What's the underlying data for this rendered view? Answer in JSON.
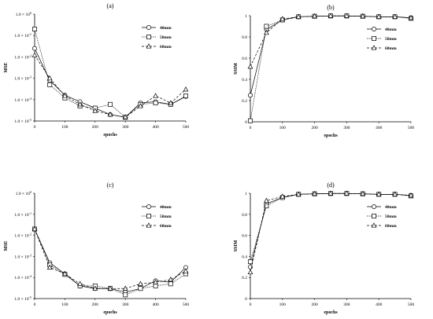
{
  "chart_data": [
    {
      "panel": "(a)",
      "type": "line",
      "xlabel": "epochs",
      "ylabel": "MSE",
      "yscale": "log",
      "xlim": [
        0,
        500
      ],
      "ylim": [
        1e-05,
        1
      ],
      "x_ticks": [
        "0",
        "100",
        "200",
        "300",
        "400",
        "500"
      ],
      "y_ticks": [
        "1.0 × 10^-5",
        "1.0 × 10^-4",
        "1.0 × 10^-3",
        "1.0 × 10^-2",
        "1.0 × 10^-1",
        "1.0 × 10^0"
      ],
      "legend_position": "top-right",
      "x": [
        0,
        50,
        100,
        150,
        200,
        250,
        300,
        350,
        400,
        450,
        500
      ],
      "series": [
        {
          "name": "40mm",
          "marker": "circle",
          "dash": "solid",
          "values": [
            0.025,
            0.0008,
            0.00016,
            8e-05,
            4e-05,
            2e-05,
            1.5e-05,
            7e-05,
            8e-05,
            6e-05,
            0.00014
          ]
        },
        {
          "name": "50mm",
          "marker": "square",
          "dash": "dotted",
          "values": [
            0.2,
            0.0005,
            0.00012,
            5e-05,
            4e-05,
            6e-05,
            1.5e-05,
            6e-05,
            7e-05,
            6e-05,
            0.00015
          ]
        },
        {
          "name": "60mm",
          "marker": "triangle",
          "dash": "dashed",
          "values": [
            0.012,
            0.001,
            0.00015,
            6e-05,
            3e-05,
            2e-05,
            1.5e-05,
            5e-05,
            0.00015,
            7e-05,
            0.0003
          ]
        }
      ]
    },
    {
      "panel": "(b)",
      "type": "line",
      "xlabel": "epochs",
      "ylabel": "SSIM",
      "xlim": [
        0,
        500
      ],
      "ylim": [
        0,
        1
      ],
      "x_ticks": [
        "0",
        "100",
        "200",
        "300",
        "400",
        "500"
      ],
      "y_ticks": [
        "0",
        "0.2",
        "0.4",
        "0.6",
        "0.8",
        "1"
      ],
      "legend_position": "top-right",
      "x": [
        0,
        50,
        100,
        150,
        200,
        250,
        300,
        350,
        400,
        450,
        500
      ],
      "series": [
        {
          "name": "40mm",
          "marker": "circle",
          "dash": "solid",
          "values": [
            0.25,
            0.87,
            0.96,
            0.99,
            0.995,
            0.998,
            0.998,
            0.995,
            0.99,
            0.99,
            0.98
          ]
        },
        {
          "name": "50mm",
          "marker": "square",
          "dash": "dotted",
          "values": [
            0.01,
            0.9,
            0.96,
            0.99,
            0.995,
            0.998,
            0.998,
            0.995,
            0.99,
            0.99,
            0.975
          ]
        },
        {
          "name": "60mm",
          "marker": "triangle",
          "dash": "dashed",
          "values": [
            0.52,
            0.84,
            0.97,
            0.99,
            0.995,
            0.998,
            0.998,
            0.995,
            0.99,
            0.99,
            0.98
          ]
        }
      ]
    },
    {
      "panel": "(c)",
      "type": "line",
      "xlabel": "epochs",
      "ylabel": "MSE",
      "yscale": "log",
      "xlim": [
        0,
        500
      ],
      "ylim": [
        1e-05,
        1
      ],
      "x_ticks": [
        "0",
        "100",
        "200",
        "300",
        "400",
        "500"
      ],
      "y_ticks": [
        "1.0 × 10^-5",
        "1.0 × 10^-4",
        "1.0 × 10^-3",
        "1.0 × 10^-2",
        "1.0 × 10^-1",
        "1.0 × 10^0"
      ],
      "legend_position": "top-right",
      "x": [
        0,
        50,
        100,
        150,
        200,
        250,
        300,
        350,
        400,
        450,
        500
      ],
      "series": [
        {
          "name": "40mm",
          "marker": "circle",
          "dash": "solid",
          "values": [
            0.02,
            0.0005,
            0.00015,
            4e-05,
            3e-05,
            3e-05,
            2e-05,
            3e-05,
            7e-05,
            6e-05,
            0.0003
          ]
        },
        {
          "name": "50mm",
          "marker": "square",
          "dash": "dotted",
          "values": [
            0.02,
            0.0004,
            0.00014,
            4e-05,
            4e-05,
            3e-05,
            1.5e-05,
            3e-05,
            4e-05,
            5e-05,
            0.00015
          ]
        },
        {
          "name": "60mm",
          "marker": "triangle",
          "dash": "dashed",
          "values": [
            0.02,
            0.0003,
            0.00015,
            5e-05,
            3e-05,
            3e-05,
            3e-05,
            5e-05,
            6e-05,
            8e-05,
            0.0002
          ]
        }
      ]
    },
    {
      "panel": "(d)",
      "type": "line",
      "xlabel": "epochs",
      "ylabel": "SSIM",
      "xlim": [
        0,
        500
      ],
      "ylim": [
        0,
        1
      ],
      "x_ticks": [
        "0",
        "100",
        "200",
        "300",
        "400",
        "500"
      ],
      "y_ticks": [
        "0",
        "0.2",
        "0.4",
        "0.6",
        "0.8",
        "1"
      ],
      "legend_position": "top-right",
      "x": [
        0,
        50,
        100,
        150,
        200,
        250,
        300,
        350,
        400,
        450,
        500
      ],
      "series": [
        {
          "name": "40mm",
          "marker": "circle",
          "dash": "solid",
          "values": [
            0.3,
            0.9,
            0.96,
            0.99,
            0.995,
            0.998,
            0.998,
            0.995,
            0.99,
            0.99,
            0.98
          ]
        },
        {
          "name": "50mm",
          "marker": "square",
          "dash": "dotted",
          "values": [
            0.35,
            0.88,
            0.96,
            0.99,
            0.995,
            0.998,
            0.998,
            0.995,
            0.99,
            0.99,
            0.975
          ]
        },
        {
          "name": "60mm",
          "marker": "triangle",
          "dash": "dashed",
          "values": [
            0.25,
            0.93,
            0.97,
            0.99,
            0.995,
            0.998,
            0.998,
            0.995,
            0.99,
            0.99,
            0.98
          ]
        }
      ]
    }
  ]
}
